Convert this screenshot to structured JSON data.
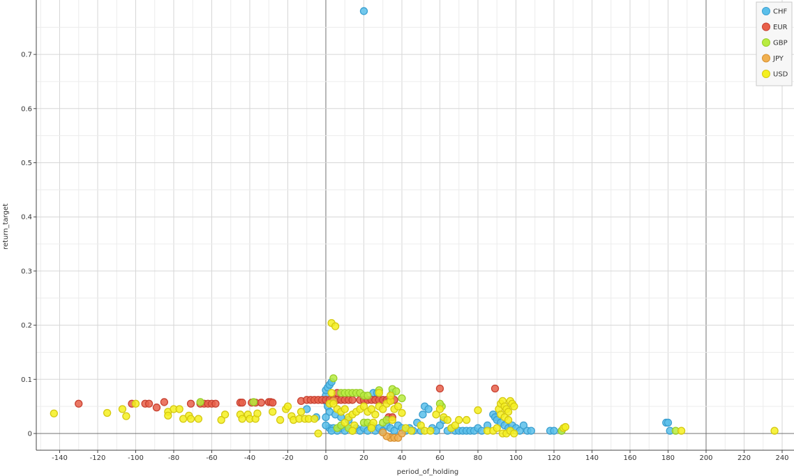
{
  "chart_data": {
    "type": "scatter",
    "title": "",
    "xlabel": "period_of_holding",
    "ylabel": "return_target",
    "xlim": [
      -150,
      245
    ],
    "ylim": [
      -0.03,
      0.8
    ],
    "x_ticks": [
      "-140",
      "-120",
      "-100",
      "-80",
      "-60",
      "-40",
      "-20",
      "0",
      "20",
      "40",
      "60",
      "80",
      "100",
      "120",
      "140",
      "160",
      "180",
      "200",
      "220",
      "240"
    ],
    "y_ticks": [
      "0",
      "0.1",
      "0.2",
      "0.3",
      "0.4",
      "0.5",
      "0.6",
      "0.7"
    ],
    "major_vertical_lines_at": [
      0,
      200
    ],
    "grid": true,
    "legend_position": "top-right",
    "series": [
      {
        "name": "CHF",
        "color": "#5bbfea",
        "stroke": "#3a9fd0",
        "points": [
          [
            20,
            0.78
          ],
          [
            0,
            0.06
          ],
          [
            0,
            0.07
          ],
          [
            0,
            0.08
          ],
          [
            1,
            0.085
          ],
          [
            2,
            0.09
          ],
          [
            3,
            0.095
          ],
          [
            1,
            0.05
          ],
          [
            2,
            0.04
          ],
          [
            0,
            0.03
          ],
          [
            -10,
            0.045
          ],
          [
            -5,
            0.03
          ],
          [
            5,
            0.035
          ],
          [
            8,
            0.03
          ],
          [
            2,
            0.01
          ],
          [
            4,
            0.01
          ],
          [
            6,
            0.005
          ],
          [
            8,
            0.01
          ],
          [
            10,
            0.005
          ],
          [
            12,
            0.01
          ],
          [
            14,
            0.005
          ],
          [
            16,
            0.01
          ],
          [
            18,
            0.005
          ],
          [
            20,
            0.01
          ],
          [
            22,
            0.005
          ],
          [
            24,
            0.01
          ],
          [
            26,
            0.005
          ],
          [
            28,
            0.01
          ],
          [
            30,
            0.005
          ],
          [
            32,
            0.015
          ],
          [
            34,
            0.01
          ],
          [
            36,
            0.005
          ],
          [
            38,
            0.015
          ],
          [
            40,
            0.01
          ],
          [
            42,
            0.005
          ],
          [
            44,
            0.01
          ],
          [
            46,
            0.005
          ],
          [
            48,
            0.02
          ],
          [
            50,
            0.005
          ],
          [
            52,
            0.05
          ],
          [
            51,
            0.035
          ],
          [
            54,
            0.045
          ],
          [
            56,
            0.01
          ],
          [
            58,
            0.005
          ],
          [
            60,
            0.015
          ],
          [
            62,
            0.025
          ],
          [
            64,
            0.005
          ],
          [
            66,
            0.01
          ],
          [
            68,
            0.005
          ],
          [
            70,
            0.005
          ],
          [
            72,
            0.005
          ],
          [
            74,
            0.005
          ],
          [
            76,
            0.005
          ],
          [
            78,
            0.005
          ],
          [
            80,
            0.01
          ],
          [
            82,
            0.005
          ],
          [
            85,
            0.015
          ],
          [
            88,
            0.035
          ],
          [
            89,
            0.03
          ],
          [
            90,
            0.025
          ],
          [
            92,
            0.02
          ],
          [
            94,
            0.015
          ],
          [
            96,
            0.01
          ],
          [
            98,
            0.015
          ],
          [
            100,
            0.01
          ],
          [
            102,
            0.005
          ],
          [
            104,
            0.015
          ],
          [
            106,
            0.005
          ],
          [
            108,
            0.005
          ],
          [
            118,
            0.005
          ],
          [
            120,
            0.005
          ],
          [
            124,
            0.005
          ],
          [
            179,
            0.02
          ],
          [
            180,
            0.02
          ],
          [
            181,
            0.005
          ],
          [
            25,
            0.075
          ],
          [
            27,
            0.075
          ],
          [
            35,
            0.075
          ],
          [
            0,
            0.015
          ],
          [
            3,
            0.005
          ],
          [
            12,
            0.025
          ]
        ]
      },
      {
        "name": "EUR",
        "color": "#e8604a",
        "stroke": "#c84030",
        "points": [
          [
            -130,
            0.055
          ],
          [
            -102,
            0.055
          ],
          [
            -95,
            0.055
          ],
          [
            -93,
            0.055
          ],
          [
            -89,
            0.048
          ],
          [
            -85,
            0.058
          ],
          [
            -71,
            0.055
          ],
          [
            -66,
            0.055
          ],
          [
            -64,
            0.055
          ],
          [
            -62,
            0.055
          ],
          [
            -60,
            0.055
          ],
          [
            -58,
            0.055
          ],
          [
            -45,
            0.057
          ],
          [
            -44,
            0.057
          ],
          [
            -39,
            0.057
          ],
          [
            -37,
            0.057
          ],
          [
            -34,
            0.057
          ],
          [
            -30,
            0.058
          ],
          [
            -29,
            0.058
          ],
          [
            -28,
            0.057
          ],
          [
            -13,
            0.06
          ],
          [
            -10,
            0.062
          ],
          [
            -8,
            0.062
          ],
          [
            -6,
            0.062
          ],
          [
            -4,
            0.062
          ],
          [
            -2,
            0.062
          ],
          [
            0,
            0.062
          ],
          [
            2,
            0.062
          ],
          [
            4,
            0.062
          ],
          [
            6,
            0.062
          ],
          [
            8,
            0.062
          ],
          [
            10,
            0.062
          ],
          [
            12,
            0.062
          ],
          [
            14,
            0.062
          ],
          [
            18,
            0.062
          ],
          [
            20,
            0.062
          ],
          [
            22,
            0.062
          ],
          [
            24,
            0.062
          ],
          [
            26,
            0.062
          ],
          [
            28,
            0.062
          ],
          [
            30,
            0.062
          ],
          [
            32,
            0.062
          ],
          [
            34,
            0.062
          ],
          [
            36,
            0.062
          ],
          [
            6,
            0.075
          ],
          [
            33,
            0.03
          ],
          [
            35,
            0.03
          ],
          [
            60,
            0.083
          ],
          [
            89,
            0.083
          ]
        ]
      },
      {
        "name": "GBP",
        "color": "#b8ec40",
        "stroke": "#98cc28",
        "points": [
          [
            -66,
            0.058
          ],
          [
            -38,
            0.058
          ],
          [
            4,
            0.102
          ],
          [
            8,
            0.075
          ],
          [
            10,
            0.075
          ],
          [
            12,
            0.075
          ],
          [
            14,
            0.075
          ],
          [
            16,
            0.075
          ],
          [
            18,
            0.075
          ],
          [
            20,
            0.07
          ],
          [
            22,
            0.07
          ],
          [
            28,
            0.08
          ],
          [
            35,
            0.082
          ],
          [
            37,
            0.078
          ],
          [
            40,
            0.065
          ],
          [
            20,
            0.02
          ],
          [
            22,
            0.02
          ],
          [
            24,
            0.015
          ],
          [
            6,
            0.01
          ],
          [
            8,
            0.015
          ],
          [
            12,
            0.01
          ],
          [
            14,
            0.005
          ],
          [
            30,
            0.02
          ],
          [
            32,
            0.025
          ],
          [
            61,
            0.05
          ],
          [
            60,
            0.055
          ],
          [
            124,
            0.005
          ],
          [
            184,
            0.005
          ]
        ]
      },
      {
        "name": "JPY",
        "color": "#f0b050",
        "stroke": "#d89030",
        "points": [
          [
            4,
            0.06
          ],
          [
            34,
            -0.008
          ],
          [
            36,
            -0.008
          ],
          [
            38,
            -0.008
          ],
          [
            32,
            -0.005
          ],
          [
            30,
            0.002
          ],
          [
            40,
            0.0
          ]
        ]
      },
      {
        "name": "USD",
        "color": "#f4f020",
        "stroke": "#d4c810",
        "points": [
          [
            3,
            0.204
          ],
          [
            5,
            0.198
          ],
          [
            -143,
            0.037
          ],
          [
            -115,
            0.038
          ],
          [
            -107,
            0.045
          ],
          [
            -105,
            0.032
          ],
          [
            -100,
            0.055
          ],
          [
            -83,
            0.04
          ],
          [
            -83,
            0.033
          ],
          [
            -80,
            0.045
          ],
          [
            -77,
            0.045
          ],
          [
            -75,
            0.027
          ],
          [
            -72,
            0.033
          ],
          [
            -71,
            0.027
          ],
          [
            -67,
            0.027
          ],
          [
            -55,
            0.025
          ],
          [
            -53,
            0.035
          ],
          [
            -45,
            0.035
          ],
          [
            -44,
            0.027
          ],
          [
            -41,
            0.035
          ],
          [
            -40,
            0.027
          ],
          [
            -37,
            0.027
          ],
          [
            -36,
            0.037
          ],
          [
            -28,
            0.04
          ],
          [
            -24,
            0.025
          ],
          [
            -21,
            0.045
          ],
          [
            -20,
            0.05
          ],
          [
            -18,
            0.032
          ],
          [
            -17,
            0.025
          ],
          [
            -14,
            0.027
          ],
          [
            -13,
            0.04
          ],
          [
            -11,
            0.027
          ],
          [
            -9,
            0.027
          ],
          [
            -6,
            0.027
          ],
          [
            -4,
            0.0
          ],
          [
            2,
            0.055
          ],
          [
            4,
            0.055
          ],
          [
            6,
            0.045
          ],
          [
            8,
            0.04
          ],
          [
            10,
            0.045
          ],
          [
            12,
            0.03
          ],
          [
            14,
            0.035
          ],
          [
            16,
            0.04
          ],
          [
            18,
            0.045
          ],
          [
            20,
            0.05
          ],
          [
            22,
            0.04
          ],
          [
            24,
            0.045
          ],
          [
            26,
            0.035
          ],
          [
            28,
            0.05
          ],
          [
            30,
            0.045
          ],
          [
            32,
            0.055
          ],
          [
            34,
            0.06
          ],
          [
            36,
            0.045
          ],
          [
            38,
            0.05
          ],
          [
            40,
            0.038
          ],
          [
            10,
            0.02
          ],
          [
            15,
            0.015
          ],
          [
            25,
            0.02
          ],
          [
            35,
            0.025
          ],
          [
            42,
            0.01
          ],
          [
            45,
            0.005
          ],
          [
            50,
            0.015
          ],
          [
            52,
            0.005
          ],
          [
            55,
            0.005
          ],
          [
            58,
            0.035
          ],
          [
            60,
            0.045
          ],
          [
            62,
            0.03
          ],
          [
            64,
            0.025
          ],
          [
            66,
            0.01
          ],
          [
            68,
            0.015
          ],
          [
            70,
            0.025
          ],
          [
            74,
            0.025
          ],
          [
            80,
            0.043
          ],
          [
            85,
            0.005
          ],
          [
            88,
            0.005
          ],
          [
            90,
            0.01
          ],
          [
            91,
            0.045
          ],
          [
            92,
            0.055
          ],
          [
            93,
            0.06
          ],
          [
            94,
            0.05
          ],
          [
            95,
            0.045
          ],
          [
            96,
            0.04
          ],
          [
            97,
            0.06
          ],
          [
            98,
            0.055
          ],
          [
            99,
            0.05
          ],
          [
            92,
            0.035
          ],
          [
            94,
            0.03
          ],
          [
            96,
            0.025
          ],
          [
            93,
            0.0
          ],
          [
            95,
            0.0
          ],
          [
            97,
            0.005
          ],
          [
            99,
            0.0
          ],
          [
            125,
            0.01
          ],
          [
            126,
            0.012
          ],
          [
            187,
            0.005
          ],
          [
            236,
            0.005
          ],
          [
            3,
            0.075
          ],
          [
            28,
            0.075
          ],
          [
            34,
            0.07
          ],
          [
            24,
            0.01
          ],
          [
            14,
            0.005
          ]
        ]
      }
    ]
  }
}
